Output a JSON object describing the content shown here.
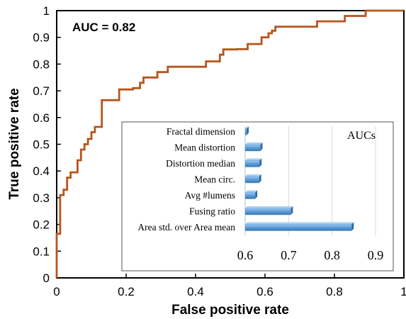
{
  "chart_data": [
    {
      "type": "line",
      "xlabel": "False positive rate",
      "ylabel": "True positive rate",
      "xlim": [
        0,
        1
      ],
      "ylim": [
        0,
        1
      ],
      "xticks": [
        "0",
        "0.2",
        "0.4",
        "0.6",
        "0.8",
        "1"
      ],
      "yticks": [
        "0",
        "0.1",
        "0.2",
        "0.3",
        "0.4",
        "0.5",
        "0.6",
        "0.7",
        "0.8",
        "0.9",
        "1"
      ],
      "annotation": "AUC = 0.82",
      "line_color": "#b5561b",
      "grid": false,
      "series": [
        {
          "x": [
            0,
            0,
            0.01,
            0.01,
            0.02,
            0.02,
            0.03,
            0.03,
            0.04,
            0.04,
            0.06,
            0.06,
            0.07,
            0.07,
            0.08,
            0.08,
            0.09,
            0.09,
            0.1,
            0.1,
            0.11,
            0.11,
            0.13,
            0.13,
            0.18,
            0.18,
            0.22,
            0.22,
            0.24,
            0.24,
            0.25,
            0.25,
            0.29,
            0.29,
            0.32,
            0.32,
            0.43,
            0.43,
            0.47,
            0.47,
            0.48,
            0.48,
            0.52,
            0.52,
            0.55,
            0.55,
            0.59,
            0.59,
            0.61,
            0.61,
            0.62,
            0.62,
            0.63,
            0.63,
            0.75,
            0.75,
            0.83,
            0.83,
            0.89,
            0.89,
            1
          ],
          "y": [
            0,
            0.165,
            0.165,
            0.31,
            0.31,
            0.33,
            0.33,
            0.375,
            0.375,
            0.395,
            0.395,
            0.44,
            0.44,
            0.48,
            0.48,
            0.5,
            0.5,
            0.52,
            0.52,
            0.545,
            0.545,
            0.565,
            0.565,
            0.665,
            0.665,
            0.705,
            0.705,
            0.71,
            0.71,
            0.73,
            0.73,
            0.75,
            0.75,
            0.77,
            0.77,
            0.79,
            0.79,
            0.81,
            0.81,
            0.835,
            0.835,
            0.855,
            0.855,
            0.856,
            0.856,
            0.875,
            0.875,
            0.9,
            0.9,
            0.915,
            0.915,
            0.925,
            0.925,
            0.94,
            0.94,
            0.96,
            0.96,
            0.98,
            0.98,
            1,
            1
          ]
        }
      ]
    },
    {
      "type": "bar",
      "orientation": "horizontal",
      "title": "AUCs",
      "categories": [
        "Fractal dimension",
        "Mean distortion",
        "Distortion median",
        "Mean circ.",
        "Avg #lumens",
        "Fusing ratio",
        "Area std. over Area mean"
      ],
      "values": [
        0.602,
        0.635,
        0.633,
        0.632,
        0.623,
        0.705,
        0.845
      ],
      "xlim": [
        0.6,
        0.9
      ],
      "xticks": [
        "0.6",
        "0.7",
        "0.8",
        "0.9"
      ],
      "bar_color": "#5b9bd5",
      "grid": true
    }
  ]
}
